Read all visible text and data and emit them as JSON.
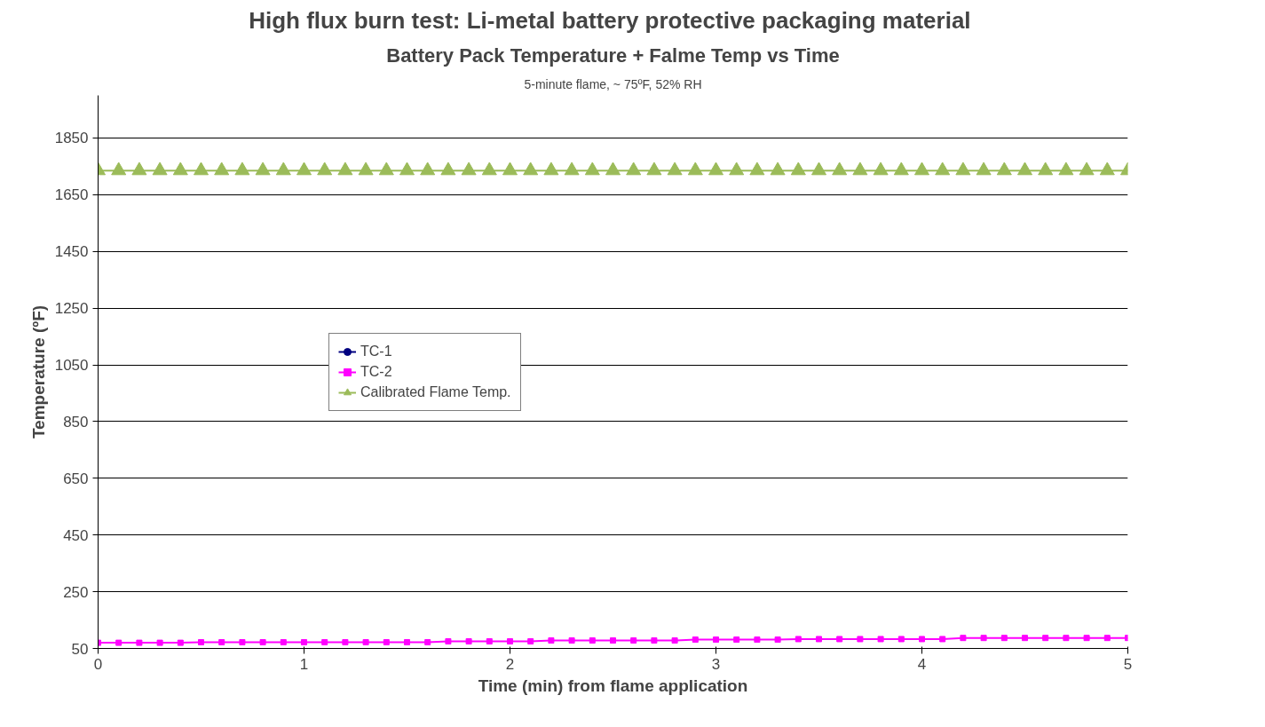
{
  "chart_data": {
    "type": "line",
    "title": "High flux burn test:  Li-metal battery protective packaging material",
    "subtitle": "Battery Pack Temperature + Falme Temp vs Time",
    "annotations": [
      "5-minute flame, ~ 75ºF, 52% RH"
    ],
    "xlabel": "Time (min) from flame application",
    "ylabel": "Temperature (ºF)",
    "x": [
      0,
      0.1,
      0.2,
      0.3,
      0.4,
      0.5,
      0.6,
      0.7,
      0.8,
      0.9,
      1.0,
      1.1,
      1.2,
      1.3,
      1.4,
      1.5,
      1.6,
      1.7,
      1.8,
      1.9,
      2.0,
      2.1,
      2.2,
      2.3,
      2.4,
      2.5,
      2.6,
      2.7,
      2.8,
      2.9,
      3.0,
      3.1,
      3.2,
      3.3,
      3.4,
      3.5,
      3.6,
      3.7,
      3.8,
      3.9,
      4.0,
      4.1,
      4.2,
      4.3,
      4.4,
      4.5,
      4.6,
      4.7,
      4.8,
      4.9,
      5.0
    ],
    "series": [
      {
        "name": "TC-1",
        "color": "#000080",
        "marker": "circle",
        "values": [
          null,
          null,
          null,
          null,
          null,
          null,
          null,
          null,
          null,
          null,
          null,
          null,
          null,
          null,
          null,
          null,
          null,
          null,
          null,
          null,
          null,
          null,
          null,
          null,
          null,
          null,
          null,
          null,
          null,
          null,
          null,
          null,
          null,
          null,
          null,
          null,
          null,
          null,
          null,
          null,
          null,
          null,
          null,
          null,
          null,
          null,
          null,
          null,
          null,
          null,
          null
        ]
      },
      {
        "name": "TC-2",
        "color": "#ff00ff",
        "marker": "square",
        "values": [
          70,
          70,
          70,
          70,
          70,
          72,
          72,
          72,
          72,
          72,
          72,
          72,
          72,
          72,
          72,
          72,
          72,
          75,
          75,
          75,
          75,
          75,
          78,
          78,
          78,
          78,
          78,
          78,
          78,
          81,
          81,
          81,
          81,
          81,
          83,
          83,
          83,
          83,
          83,
          83,
          83,
          83,
          87,
          87,
          87,
          87,
          87,
          87,
          87,
          87,
          87
        ]
      },
      {
        "name": "Calibrated Flame Temp.",
        "color": "#9bbb59",
        "marker": "triangle",
        "values": [
          1735,
          1735,
          1735,
          1735,
          1735,
          1735,
          1735,
          1735,
          1735,
          1735,
          1735,
          1735,
          1735,
          1735,
          1735,
          1735,
          1735,
          1735,
          1735,
          1735,
          1735,
          1735,
          1735,
          1735,
          1735,
          1735,
          1735,
          1735,
          1735,
          1735,
          1735,
          1735,
          1735,
          1735,
          1735,
          1735,
          1735,
          1735,
          1735,
          1735,
          1735,
          1735,
          1735,
          1735,
          1735,
          1735,
          1735,
          1735,
          1735,
          1735,
          1735
        ]
      }
    ],
    "xlim": [
      0,
      5
    ],
    "xticks": [
      0,
      1,
      2,
      3,
      4,
      5
    ],
    "ylim": [
      50,
      2000
    ],
    "yticks": [
      50,
      250,
      450,
      650,
      850,
      1050,
      1250,
      1450,
      1650,
      1850
    ],
    "grid": "y",
    "legend": "center left",
    "line_style": "solid"
  }
}
